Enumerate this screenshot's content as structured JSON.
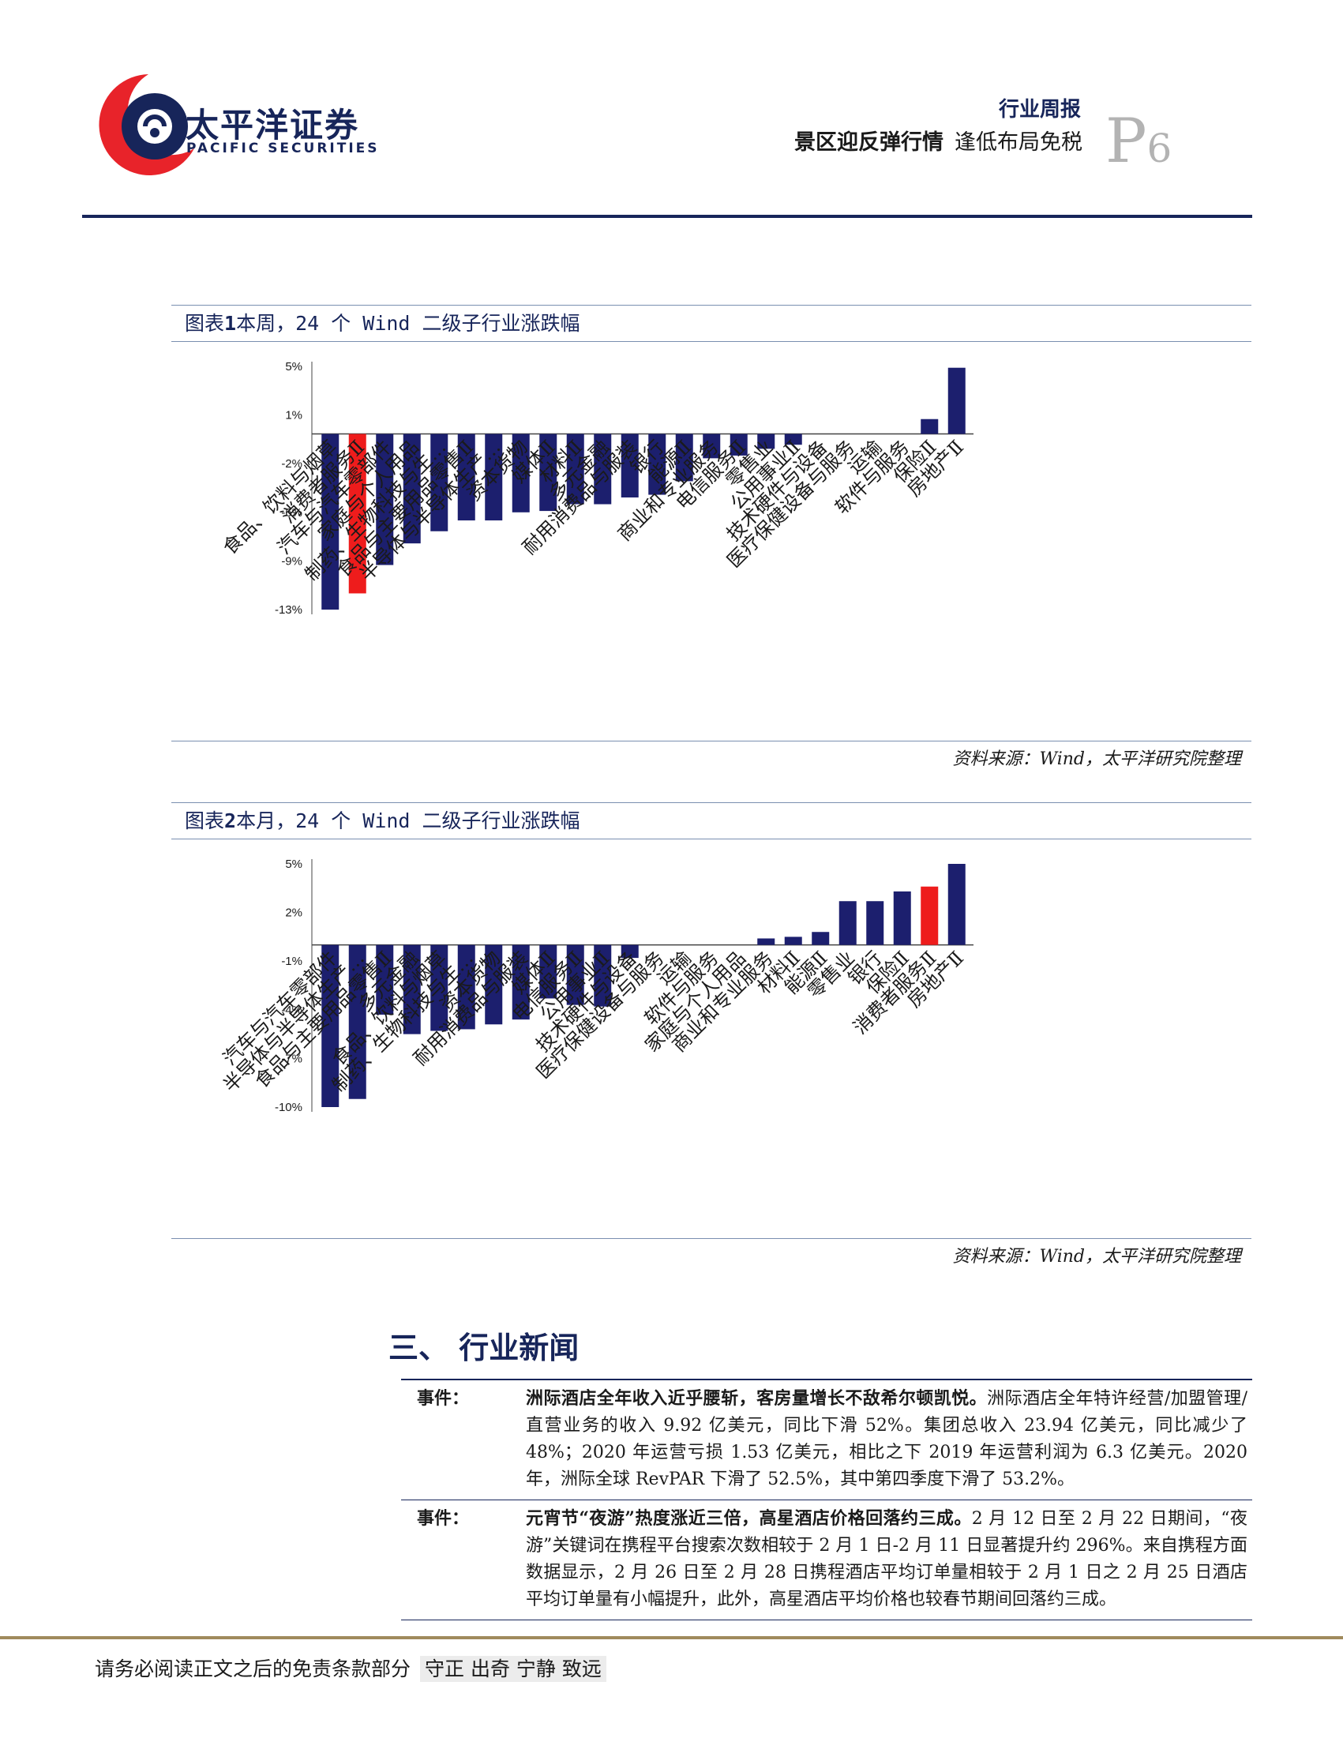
{
  "header": {
    "logo_cn": "太平洋证券",
    "logo_en": "PACIFIC SECURITIES",
    "report_type": "行业周报",
    "title_bold": "景区迎反弹行情",
    "title_rest": "逢低布局免税",
    "page_letter": "P",
    "page_number": "6"
  },
  "figure1": {
    "caption_prefix": "图表",
    "caption_num": "1",
    "caption_text": "本周，24 个 Wind 二级子行业涨跌幅",
    "source": "资料来源：Wind，太平洋研究院整理"
  },
  "figure2": {
    "caption_prefix": "图表",
    "caption_num": "2",
    "caption_text": "本月，24 个 Wind 二级子行业涨跌幅",
    "source": "资料来源：Wind，太平洋研究院整理"
  },
  "chart_data": [
    {
      "type": "bar",
      "title": "本周，24 个 Wind 二级子行业涨跌幅",
      "y_ticks": [
        "5%",
        "1%",
        "-2%",
        "-6%",
        "-9%",
        "-13%"
      ],
      "ylim": [
        -13,
        5
      ],
      "categories": [
        "食品、饮料与烟草",
        "消费者服务Ⅱ",
        "汽车与汽车零部件",
        "家庭与个人用品",
        "制药、生物科技与生…",
        "食品与主要用品零售Ⅱ",
        "半导体与半导体生产…",
        "资本货物",
        "媒体Ⅱ",
        "材料Ⅱ",
        "多元金融",
        "耐用消费品与服装",
        "银行",
        "能源Ⅱ",
        "商业和专业服务",
        "电信服务Ⅱ",
        "零售业",
        "公用事业Ⅱ",
        "技术硬件与设备",
        "医疗保健设备与服务",
        "运输",
        "软件与服务",
        "保险Ⅱ",
        "房地产Ⅱ"
      ],
      "values": [
        -13.0,
        -11.8,
        -9.7,
        -8.1,
        -7.2,
        -6.4,
        -6.4,
        -5.8,
        -5.7,
        -5.2,
        -5.2,
        -4.7,
        -4.5,
        -3.5,
        -1.8,
        -1.6,
        -1.1,
        -0.8,
        0.0,
        0.0,
        0.0,
        0.0,
        1.1,
        4.9
      ],
      "highlight": "消费者服务Ⅱ",
      "colors": {
        "bar": "#1c1f6e",
        "highlight": "#ee1c1c"
      }
    },
    {
      "type": "bar",
      "title": "本月，24 个 Wind 二级子行业涨跌幅",
      "y_ticks": [
        "5%",
        "2%",
        "-1%",
        "-4%",
        "-7%",
        "-10%"
      ],
      "ylim": [
        -10,
        5
      ],
      "categories": [
        "汽车与汽车零部件",
        "半导体与半导体生产…",
        "食品与主要用品零售Ⅱ",
        "多元金融",
        "食品、饮料与烟草",
        "制药、生物科技与生…",
        "资本货物",
        "耐用消费品与服装",
        "媒体Ⅱ",
        "电信服务Ⅱ",
        "公用事业Ⅱ",
        "技术硬件与设备",
        "医疗保健设备与服务",
        "运输",
        "软件与服务",
        "家庭与个人用品",
        "商业和专业服务",
        "材料Ⅱ",
        "能源Ⅱ",
        "零售业",
        "银行",
        "保险Ⅱ",
        "消费者服务Ⅱ",
        "房地产Ⅱ"
      ],
      "values": [
        -10.0,
        -9.5,
        -4.3,
        -5.5,
        -5.3,
        -5.2,
        -4.9,
        -4.6,
        -3.3,
        -3.7,
        -3.8,
        -0.8,
        0.0,
        0.0,
        0.0,
        0.0,
        0.4,
        0.5,
        0.8,
        2.7,
        2.7,
        3.3,
        3.6,
        5.0
      ],
      "highlight": "消费者服务Ⅱ",
      "colors": {
        "bar": "#1c1f6e",
        "highlight": "#ee1c1c"
      }
    }
  ],
  "section": {
    "title": "三、 行业新闻"
  },
  "news": [
    {
      "label": "事件：",
      "headline": "洲际酒店全年收入近乎腰斩，客房量增长不敌希尔顿凯悦。",
      "body": "洲际酒店全年特许经营/加盟管理/直营业务的收入 9.92 亿美元，同比下滑 52%。集团总收入 23.94 亿美元，同比减少了 48%；2020 年运营亏损 1.53 亿美元，相比之下 2019 年运营利润为 6.3 亿美元。2020 年，洲际全球 RevPAR 下滑了 52.5%，其中第四季度下滑了 53.2%。"
    },
    {
      "label": "事件：",
      "headline": "元宵节“夜游”热度涨近三倍，高星酒店价格回落约三成。",
      "body": "2 月 12 日至 2 月 22 日期间，“夜游”关键词在携程平台搜索次数相较于 2 月 1 日-2 月 11 日显著提升约 296%。来自携程方面数据显示，2 月 26 日至 2 月 28 日携程酒店平均订单量相较于 2 月 1 日之 2 月 25 日酒店平均订单量有小幅提升，此外，高星酒店平均价格也较春节期间回落约三成。"
    }
  ],
  "footer": {
    "disclaimer": "请务必阅读正文之后的免责条款部分",
    "motto": "守正 出奇 宁静 致远"
  }
}
